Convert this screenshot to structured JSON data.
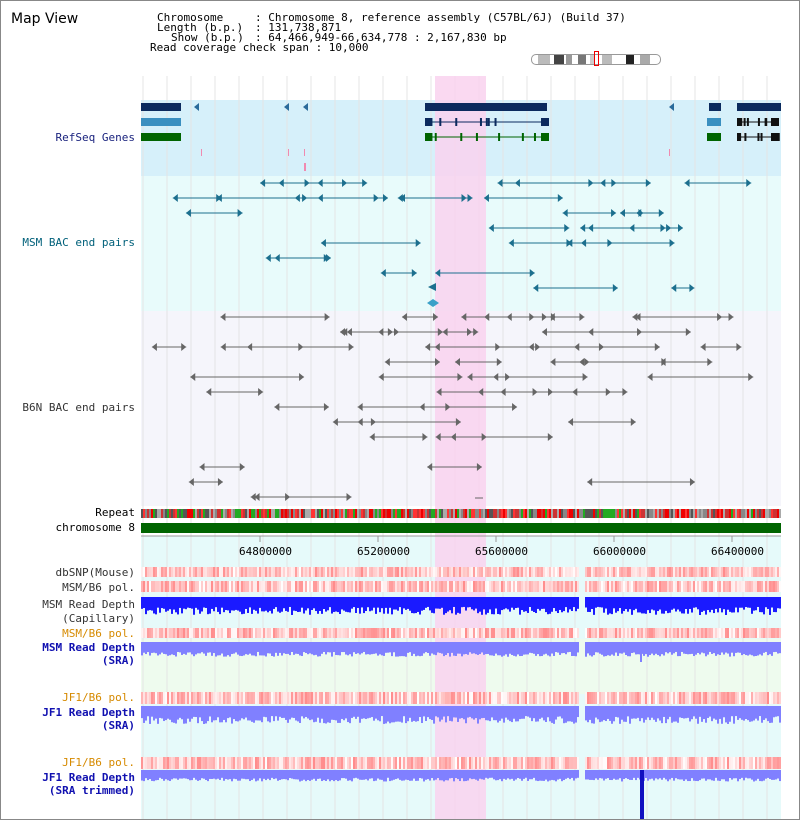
{
  "page": {
    "title": "Map View"
  },
  "info": {
    "chromosome_key": "Chromosome",
    "chromosome_val": ": Chromosome 8, reference assembly (C57BL/6J) (Build 37)",
    "length_key": "Length (b.p.)",
    "length_val": ": 131,738,871",
    "show_key": "Show (b.p.)",
    "show_val": ": 64,466,949-66,634,778 : 2,167,830 bp",
    "coverage": "Read coverage check span : 10,000"
  },
  "tracks": {
    "refseq": "RefSeq Genes",
    "msm_bac": "MSM BAC end pairs",
    "b6n_bac": "B6N BAC end pairs",
    "repeat": "Repeat",
    "chrom": "chromosome 8",
    "dbsnp": "dbSNP(Mouse)",
    "msm_b6_pol": "MSM/B6 pol.",
    "msm_read_depth": "MSM Read Depth",
    "msm_capillary": "(Capillary)",
    "msm_b6_pol2": "MSM/B6 pol.",
    "msm_read_depth_sra": "MSM Read Depth",
    "sra1": "(SRA)",
    "jf1_b6_pol": "JF1/B6 pol.",
    "jf1_read_depth": "JF1 Read Depth",
    "sra2": "(SRA)",
    "jf1_b6_pol2": "JF1/B6 pol.",
    "jf1_read_depth2": "JF1 Read Depth",
    "sra_trimmed": "(SRA trimmed)"
  },
  "axis": {
    "ticks": [
      "64800000",
      "65200000",
      "65600000",
      "66000000",
      "66400000"
    ]
  },
  "colors": {
    "refseq_bg": "#d6f0fa",
    "bac_bg": "#e8fbfb",
    "highlight": "#f9d2ee",
    "chrom_bar": "#006400",
    "depth_dark": "#1a1aff",
    "depth_light": "#8080ff"
  }
}
